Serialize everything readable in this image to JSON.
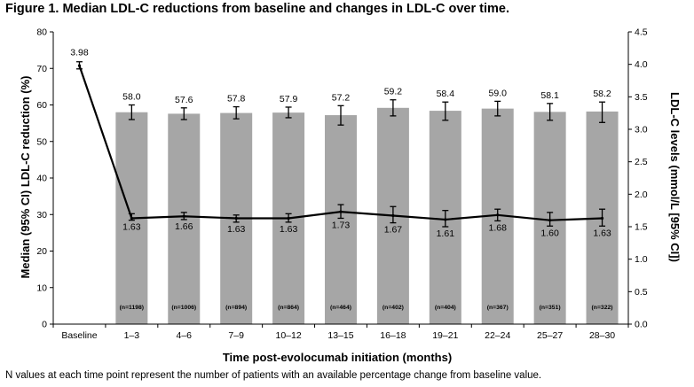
{
  "figure": {
    "title": "Figure 1. Median LDL-C reductions from baseline and changes in LDL-C over time.",
    "footnote": "N values at each time point represent the number of patients with an available percentage change from baseline value."
  },
  "chart_data": {
    "type": "bar",
    "title": "Figure 1. Median LDL-C reductions from baseline and changes in LDL-C over time.",
    "xlabel": "Time post-evolocumab initiation (months)",
    "ylabel": "Median (95% CI) LDL-C reduction (%)",
    "y2label": "LDL-C levels (mmol/L [95% CI])",
    "ylim": [
      0,
      80
    ],
    "y2lim": [
      0,
      4.5
    ],
    "yticks": [
      "0",
      "10",
      "20",
      "30",
      "40",
      "50",
      "60",
      "70",
      "80"
    ],
    "y2ticks": [
      "0.0",
      "0.5",
      "1.0",
      "1.5",
      "2.0",
      "2.5",
      "3.0",
      "3.5",
      "4.0",
      "4.5"
    ],
    "grid": false,
    "categories": [
      "Baseline",
      "1–3",
      "4–6",
      "7–9",
      "10–12",
      "13–15",
      "16–18",
      "19–21",
      "22–24",
      "25–27",
      "28–30"
    ],
    "series": [
      {
        "kind": "bar",
        "axis": "left",
        "color": "#a6a6a6",
        "values": [
          null,
          58.0,
          57.6,
          57.8,
          57.9,
          57.2,
          59.2,
          58.4,
          59.0,
          58.1,
          58.2
        ],
        "labels": [
          "",
          "58.0",
          "57.6",
          "57.8",
          "57.9",
          "57.2",
          "59.2",
          "58.4",
          "59.0",
          "58.1",
          "58.2"
        ],
        "ci_low": [
          null,
          56.0,
          56.0,
          56.2,
          56.5,
          54.5,
          57.0,
          55.8,
          57.0,
          55.8,
          55.2
        ],
        "ci_high": [
          null,
          60.0,
          59.2,
          59.5,
          59.4,
          59.8,
          61.4,
          60.8,
          61.0,
          60.4,
          60.8
        ]
      },
      {
        "kind": "line",
        "axis": "right",
        "color": "#000000",
        "values": [
          3.98,
          1.63,
          1.66,
          1.63,
          1.63,
          1.73,
          1.67,
          1.61,
          1.68,
          1.6,
          1.63
        ],
        "labels": [
          "3.98",
          "1.63",
          "1.66",
          "1.63",
          "1.63",
          "1.73",
          "1.67",
          "1.61",
          "1.68",
          "1.60",
          "1.63"
        ],
        "ci_low": [
          3.93,
          1.6,
          1.61,
          1.57,
          1.57,
          1.63,
          1.56,
          1.5,
          1.59,
          1.51,
          1.51
        ],
        "ci_high": [
          4.04,
          1.7,
          1.72,
          1.68,
          1.7,
          1.84,
          1.81,
          1.75,
          1.77,
          1.72,
          1.77
        ]
      }
    ],
    "n_labels": [
      "",
      "(n=1198)",
      "(n=1006)",
      "(n=894)",
      "(n=864)",
      "(n=464)",
      "(n=402)",
      "(n=404)",
      "(n=367)",
      "(n=351)",
      "(n=322)"
    ]
  }
}
